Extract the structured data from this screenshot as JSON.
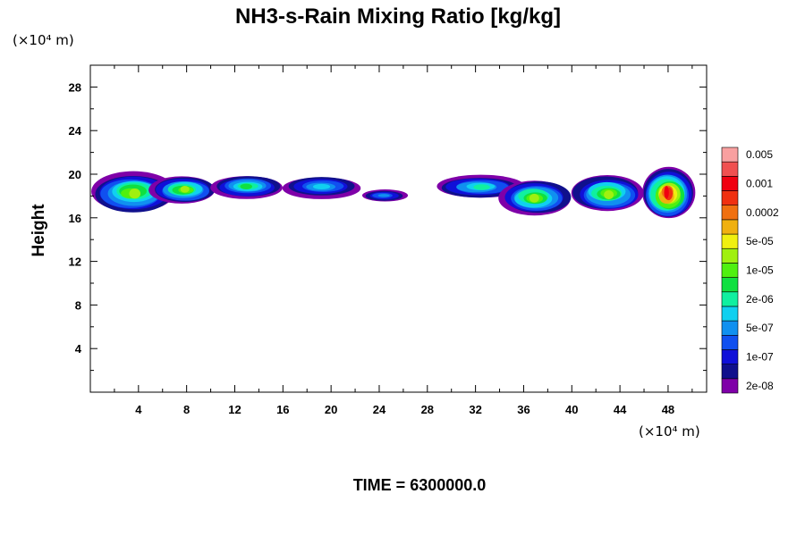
{
  "chart_data": {
    "type": "heatmap",
    "title": "NH3-s-Rain Mixing Ratio [kg/kg]",
    "ylabel": "Height",
    "xlabel": "",
    "x_unit": "(×10⁴ m)",
    "y_unit": "(×10⁴ m)",
    "xlim": [
      0,
      51.2
    ],
    "ylim": [
      0,
      30
    ],
    "x_ticks": [
      4,
      8,
      12,
      16,
      20,
      24,
      28,
      32,
      36,
      40,
      44,
      48
    ],
    "y_ticks": [
      4,
      8,
      12,
      16,
      20,
      24,
      28
    ],
    "x_tick_labels": [
      "4",
      "8",
      "12",
      "16",
      "20",
      "24",
      "28",
      "32",
      "36",
      "40",
      "44",
      "48"
    ],
    "y_tick_labels": [
      "4",
      "8",
      "12",
      "16",
      "20",
      "24",
      "28"
    ],
    "footer": "TIME = 6300000.0",
    "colorbar": {
      "colors": [
        "#7f00a8",
        "#10108c",
        "#1010d8",
        "#1050f0",
        "#1090f0",
        "#10d0f0",
        "#10f0a0",
        "#10e040",
        "#50f010",
        "#a0f010",
        "#f0f010",
        "#f0b010",
        "#f07010",
        "#f03010",
        "#f00010",
        "#f05050",
        "#f8a0a0"
      ],
      "labels": [
        "2e-08",
        "1e-07",
        "5e-07",
        "2e-06",
        "1e-05",
        "5e-05",
        "0.0002",
        "0.001",
        "0.005"
      ]
    },
    "cloud_bands": [
      {
        "x_range": [
          0.0,
          7.0
        ],
        "y_range": [
          16.5,
          20.2
        ],
        "max_level": 9
      },
      {
        "x_range": [
          5.0,
          10.5
        ],
        "y_range": [
          17.3,
          19.8
        ],
        "max_level": 9
      },
      {
        "x_range": [
          10.0,
          16.0
        ],
        "y_range": [
          17.8,
          19.9
        ],
        "max_level": 7
      },
      {
        "x_range": [
          16.0,
          22.5
        ],
        "y_range": [
          17.8,
          19.8
        ],
        "max_level": 5
      },
      {
        "x_range": [
          22.5,
          26.3
        ],
        "y_range": [
          17.5,
          18.6
        ],
        "max_level": 4
      },
      {
        "x_range": [
          28.7,
          36.0
        ],
        "y_range": [
          17.8,
          19.9
        ],
        "max_level": 6
      },
      {
        "x_range": [
          34.0,
          40.0
        ],
        "y_range": [
          16.3,
          19.5
        ],
        "max_level": 9
      },
      {
        "x_range": [
          40.0,
          46.0
        ],
        "y_range": [
          16.6,
          19.9
        ],
        "max_level": 9
      },
      {
        "x_range": [
          45.8,
          50.2
        ],
        "y_range": [
          15.8,
          20.5
        ],
        "max_level": 14
      }
    ]
  }
}
